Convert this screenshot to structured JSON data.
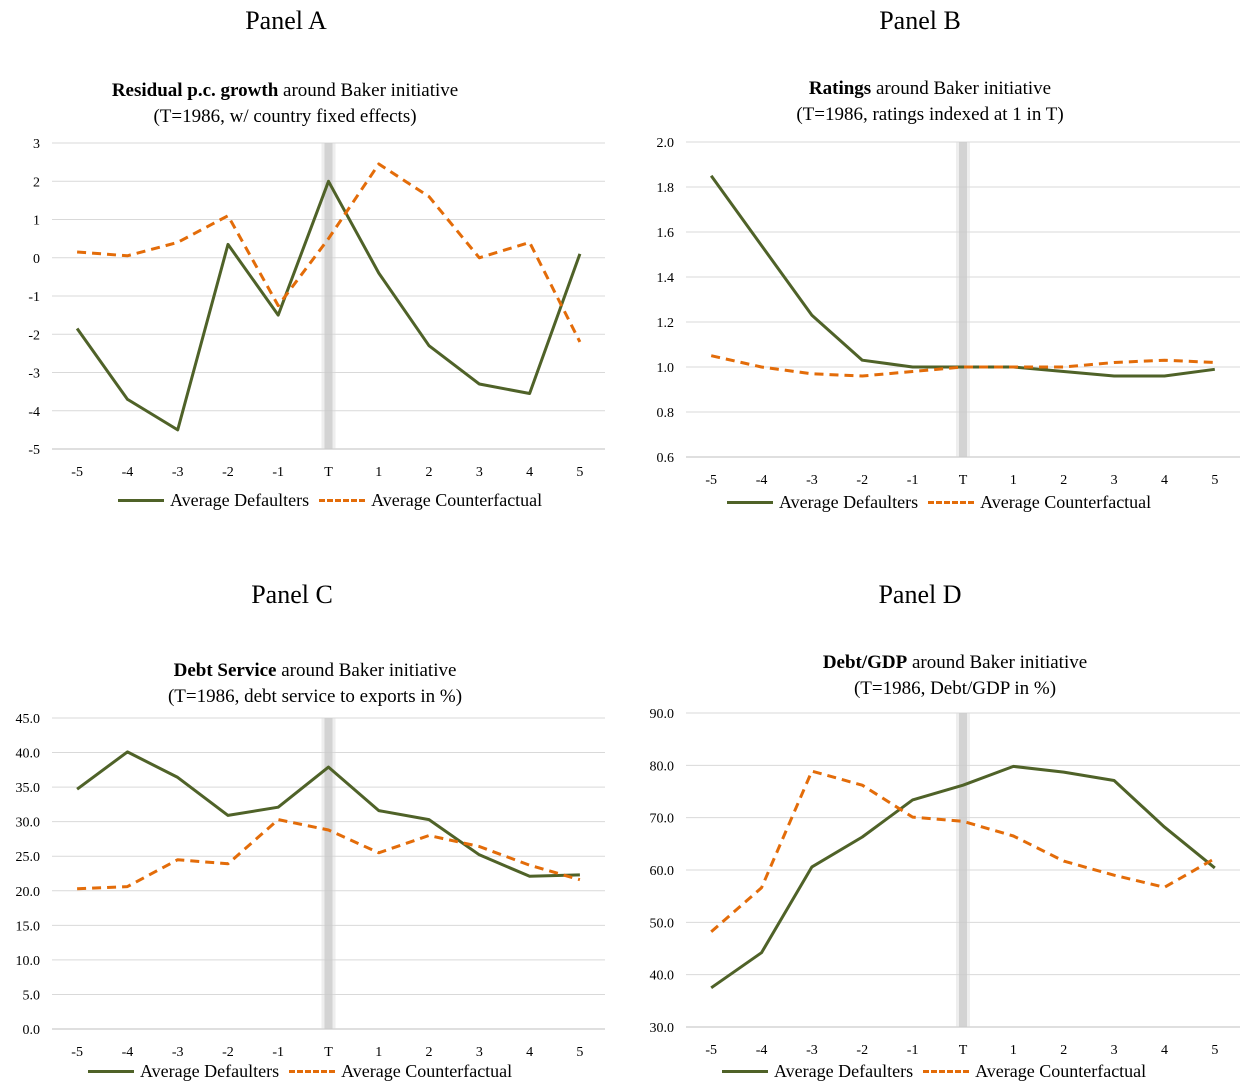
{
  "chart_data": [
    {
      "panel_label": "Panel A",
      "type": "line",
      "title_bold": "Residual p.c. growth",
      "title_rest": " around Baker initiative",
      "subtitle": "(T=1986, w/ country  fixed effects)",
      "categories": [
        "-5",
        "-4",
        "-3",
        "-2",
        "-1",
        "T",
        "1",
        "2",
        "3",
        "4",
        "5"
      ],
      "ylim": [
        -5,
        3
      ],
      "yticks": [
        "3",
        "2",
        "1",
        "0",
        "-1",
        "-2",
        "-3",
        "-4",
        "-5"
      ],
      "grid": true,
      "marker_category": "T",
      "legend_position": "bottom",
      "series": [
        {
          "name": "Average Defaulters",
          "color": "#4f6228",
          "style": "solid",
          "values": [
            -1.85,
            -3.7,
            -4.5,
            0.35,
            -1.5,
            2.0,
            -0.4,
            -2.3,
            -3.3,
            -3.55,
            0.1
          ]
        },
        {
          "name": "Average Counterfactual",
          "color": "#e36c09",
          "style": "dashed",
          "values": [
            0.15,
            0.05,
            0.4,
            1.1,
            -1.25,
            0.5,
            2.45,
            1.6,
            0.0,
            0.4,
            -2.2
          ]
        }
      ]
    },
    {
      "panel_label": "Panel B",
      "type": "line",
      "title_bold": "Ratings",
      "title_rest": " around Baker initiative",
      "subtitle": "(T=1986, ratings  indexed at 1 in T)",
      "categories": [
        "-5",
        "-4",
        "-3",
        "-2",
        "-1",
        "T",
        "1",
        "2",
        "3",
        "4",
        "5"
      ],
      "ylim": [
        0.6,
        2.0
      ],
      "yticks": [
        "2.0",
        "1.8",
        "1.6",
        "1.4",
        "1.2",
        "1.0",
        "0.8",
        "0.6"
      ],
      "grid": true,
      "marker_category": "T",
      "legend_position": "bottom",
      "series": [
        {
          "name": "Average Defaulters",
          "color": "#4f6228",
          "style": "solid",
          "values": [
            1.85,
            1.54,
            1.23,
            1.03,
            1.0,
            1.0,
            1.0,
            0.98,
            0.96,
            0.96,
            0.99
          ]
        },
        {
          "name": "Average Counterfactual",
          "color": "#e36c09",
          "style": "dashed",
          "values": [
            1.05,
            1.0,
            0.97,
            0.96,
            0.98,
            1.0,
            1.0,
            1.0,
            1.02,
            1.03,
            1.02
          ]
        }
      ]
    },
    {
      "panel_label": "Panel C",
      "type": "line",
      "title_bold": "Debt Service",
      "title_rest": " around Baker initiative",
      "subtitle": "(T=1986, debt service to exports in %)",
      "categories": [
        "-5",
        "-4",
        "-3",
        "-2",
        "-1",
        "T",
        "1",
        "2",
        "3",
        "4",
        "5"
      ],
      "ylim": [
        0,
        45
      ],
      "yticks": [
        "45.0",
        "40.0",
        "35.0",
        "30.0",
        "25.0",
        "20.0",
        "15.0",
        "10.0",
        "5.0",
        "0.0"
      ],
      "grid": true,
      "marker_category": "T",
      "legend_position": "bottom",
      "series": [
        {
          "name": "Average Defaulters",
          "color": "#4f6228",
          "style": "solid",
          "values": [
            34.7,
            40.1,
            36.4,
            30.9,
            32.1,
            37.9,
            31.6,
            30.3,
            25.2,
            22.1,
            22.3
          ]
        },
        {
          "name": "Average Counterfactual",
          "color": "#e36c09",
          "style": "dashed",
          "values": [
            20.3,
            20.6,
            24.5,
            23.9,
            30.3,
            28.8,
            25.5,
            28.0,
            26.4,
            23.7,
            21.6
          ]
        }
      ]
    },
    {
      "panel_label": "Panel D",
      "type": "line",
      "title_bold": "Debt/GDP",
      "title_rest": " around Baker initiative",
      "subtitle": "(T=1986, Debt/GDP in %)",
      "categories": [
        "-5",
        "-4",
        "-3",
        "-2",
        "-1",
        "T",
        "1",
        "2",
        "3",
        "4",
        "5"
      ],
      "ylim": [
        30,
        90
      ],
      "yticks": [
        "90.0",
        "80.0",
        "70.0",
        "60.0",
        "50.0",
        "40.0",
        "30.0"
      ],
      "grid": true,
      "marker_category": "T",
      "legend_position": "bottom",
      "series": [
        {
          "name": "Average Defaulters",
          "color": "#4f6228",
          "style": "solid",
          "values": [
            37.5,
            44.2,
            60.6,
            66.3,
            73.4,
            76.2,
            79.8,
            78.7,
            77.1,
            68.2,
            60.4
          ]
        },
        {
          "name": "Average Counterfactual",
          "color": "#e36c09",
          "style": "dashed",
          "values": [
            48.2,
            56.6,
            78.9,
            76.2,
            70.1,
            69.3,
            66.5,
            61.7,
            59.0,
            56.7,
            62.2
          ]
        }
      ]
    }
  ]
}
